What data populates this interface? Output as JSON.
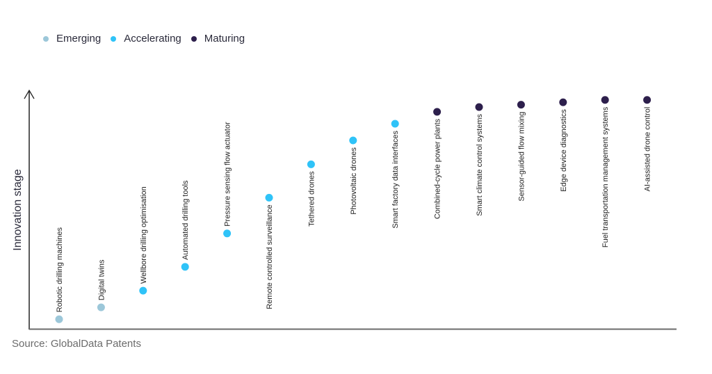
{
  "chart_data": {
    "type": "scatter",
    "title": "",
    "xlabel": "",
    "ylabel": "Innovation stage",
    "ylim": [
      0,
      1
    ],
    "grid": false,
    "legend_placement": "top-left",
    "legend": [
      {
        "name": "Emerging",
        "color": "#9cc7d9"
      },
      {
        "name": "Accelerating",
        "color": "#2fc3f8"
      },
      {
        "name": "Maturing",
        "color": "#2d1f4c"
      }
    ],
    "points": [
      {
        "label": "Robotic drilling machines",
        "stage": "Emerging",
        "y": 0.04
      },
      {
        "label": "Digital twins",
        "stage": "Emerging",
        "y": 0.09
      },
      {
        "label": "Wellbore drilling optimisation",
        "stage": "Accelerating",
        "y": 0.16
      },
      {
        "label": "Automated drilling tools",
        "stage": "Accelerating",
        "y": 0.26
      },
      {
        "label": "Pressure sensing flow actuator",
        "stage": "Accelerating",
        "y": 0.4
      },
      {
        "label": "Remote controlled surveillance",
        "stage": "Accelerating",
        "y": 0.55
      },
      {
        "label": "Tethered drones",
        "stage": "Accelerating",
        "y": 0.69
      },
      {
        "label": "Photovoltaic drones",
        "stage": "Accelerating",
        "y": 0.79
      },
      {
        "label": "Smart factory data interfaces",
        "stage": "Accelerating",
        "y": 0.86
      },
      {
        "label": "Combined-cycle power plants",
        "stage": "Maturing",
        "y": 0.91
      },
      {
        "label": "Smart climate control systems",
        "stage": "Maturing",
        "y": 0.93
      },
      {
        "label": "Sensor-guided flow mixing",
        "stage": "Maturing",
        "y": 0.94
      },
      {
        "label": "Edge device diagnostics",
        "stage": "Maturing",
        "y": 0.95
      },
      {
        "label": "Fuel transportation management systems",
        "stage": "Maturing",
        "y": 0.96
      },
      {
        "label": "AI-assisted drone control",
        "stage": "Maturing",
        "y": 0.96
      }
    ]
  },
  "source": "Source: GlobalData Patents"
}
